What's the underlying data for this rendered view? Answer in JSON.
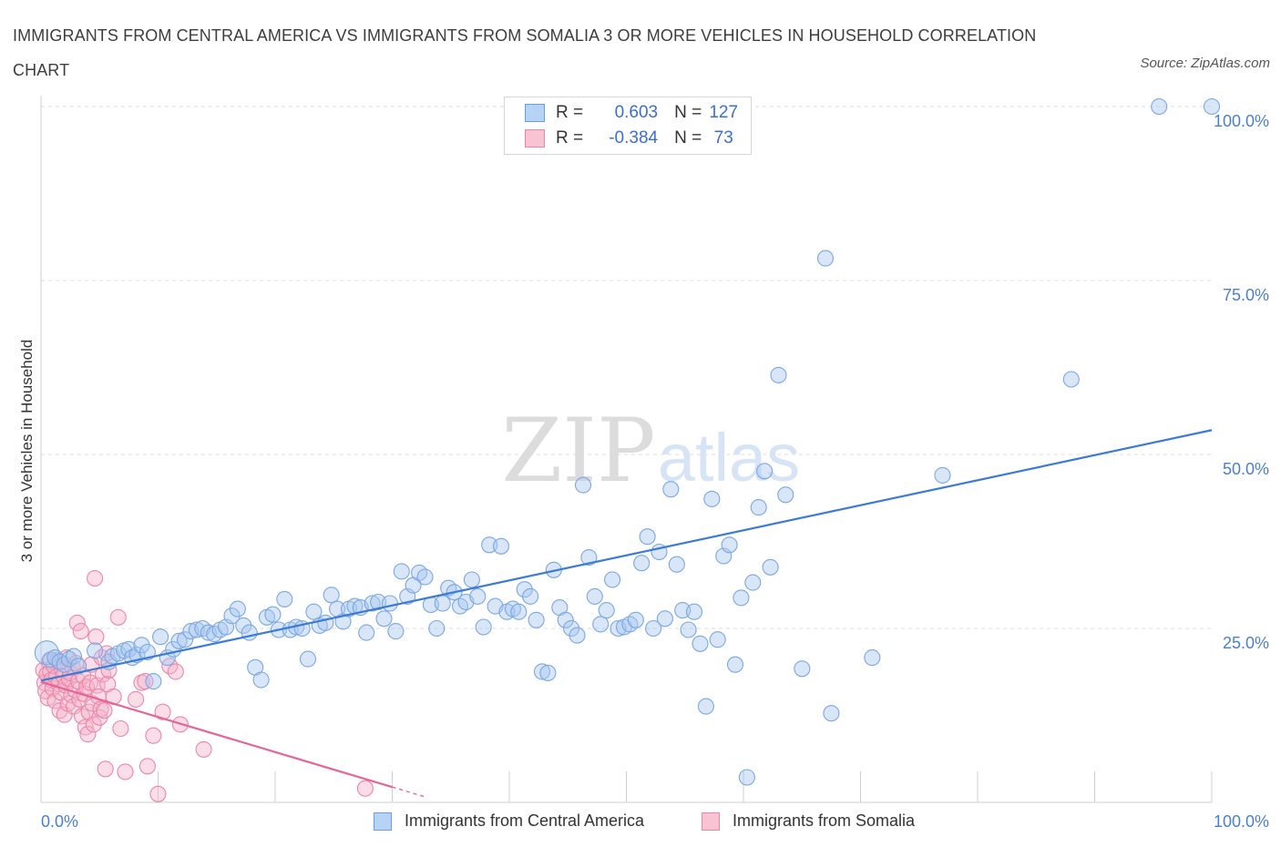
{
  "title": "IMMIGRANTS FROM CENTRAL AMERICA VS IMMIGRANTS FROM SOMALIA 3 OR MORE VEHICLES IN HOUSEHOLD CORRELATION CHART",
  "source": "Source: ZipAtlas.com",
  "watermark": {
    "zip": "ZIP",
    "atlas": "atlas"
  },
  "legend": {
    "r_label": "R =",
    "n_label": "N =",
    "rows": [
      {
        "r": "0.603",
        "n": "127"
      },
      {
        "r": "-0.384",
        "n": "73"
      }
    ]
  },
  "colors": {
    "blue_fill": "#a9c8f0",
    "blue_stroke": "#7aa7e3",
    "blue_line": "#3b7bd4",
    "pink_fill": "#f5b4c9",
    "pink_stroke": "#ec86a7",
    "pink_line": "#e4659a"
  },
  "chart_data": {
    "type": "scatter",
    "title": "IMMIGRANTS FROM CENTRAL AMERICA VS IMMIGRANTS FROM SOMALIA 3 OR MORE VEHICLES IN HOUSEHOLD CORRELATION CHART",
    "xlabel": "",
    "ylabel": "3 or more Vehicles in Household",
    "xlim": [
      0,
      100
    ],
    "ylim": [
      0,
      100
    ],
    "x_tick_labels": [
      "0.0%",
      "100.0%"
    ],
    "y_tick_labels": [
      "25.0%",
      "50.0%",
      "75.0%",
      "100.0%"
    ],
    "y_ticks": [
      25,
      50,
      75,
      100
    ],
    "grid": true,
    "legend_position": "top-center",
    "series": [
      {
        "name": "Immigrants from Central America",
        "R": 0.603,
        "N": 127,
        "trend": {
          "x": [
            0,
            100
          ],
          "y": [
            17.5,
            53.5
          ]
        },
        "points": [
          [
            0.5,
            21.5
          ],
          [
            0.8,
            20.5
          ],
          [
            1.2,
            20.8
          ],
          [
            1.6,
            20.2
          ],
          [
            2.0,
            19.8
          ],
          [
            2.4,
            20.6
          ],
          [
            2.8,
            21.0
          ],
          [
            3.2,
            19.6
          ],
          [
            4.6,
            21.8
          ],
          [
            5.8,
            20.2
          ],
          [
            6.1,
            21.0
          ],
          [
            6.6,
            21.4
          ],
          [
            7.1,
            21.8
          ],
          [
            7.5,
            22.0
          ],
          [
            7.8,
            20.8
          ],
          [
            8.2,
            21.2
          ],
          [
            8.6,
            22.6
          ],
          [
            9.1,
            21.6
          ],
          [
            9.6,
            17.4
          ],
          [
            10.2,
            23.8
          ],
          [
            10.8,
            20.8
          ],
          [
            11.3,
            22.0
          ],
          [
            11.8,
            23.2
          ],
          [
            12.3,
            23.4
          ],
          [
            12.8,
            24.6
          ],
          [
            13.3,
            24.8
          ],
          [
            13.8,
            25.0
          ],
          [
            14.3,
            24.4
          ],
          [
            14.8,
            24.2
          ],
          [
            15.3,
            24.8
          ],
          [
            15.8,
            25.2
          ],
          [
            16.3,
            26.8
          ],
          [
            16.8,
            27.8
          ],
          [
            17.3,
            25.4
          ],
          [
            17.8,
            24.4
          ],
          [
            18.3,
            19.4
          ],
          [
            18.8,
            17.6
          ],
          [
            19.3,
            26.6
          ],
          [
            19.8,
            27.0
          ],
          [
            20.3,
            24.8
          ],
          [
            20.8,
            29.2
          ],
          [
            21.3,
            24.8
          ],
          [
            21.8,
            25.2
          ],
          [
            22.3,
            25.0
          ],
          [
            22.8,
            20.6
          ],
          [
            23.3,
            27.4
          ],
          [
            23.8,
            25.4
          ],
          [
            24.3,
            25.8
          ],
          [
            24.8,
            29.8
          ],
          [
            25.3,
            27.8
          ],
          [
            25.8,
            26.0
          ],
          [
            26.3,
            27.8
          ],
          [
            26.8,
            28.2
          ],
          [
            27.3,
            28.0
          ],
          [
            27.8,
            24.4
          ],
          [
            28.3,
            28.6
          ],
          [
            28.8,
            28.8
          ],
          [
            29.3,
            26.4
          ],
          [
            29.8,
            28.6
          ],
          [
            30.3,
            24.6
          ],
          [
            30.8,
            33.2
          ],
          [
            31.3,
            29.6
          ],
          [
            31.8,
            31.2
          ],
          [
            32.3,
            33.0
          ],
          [
            32.8,
            32.4
          ],
          [
            33.3,
            28.4
          ],
          [
            33.8,
            25.0
          ],
          [
            34.3,
            28.6
          ],
          [
            34.8,
            30.8
          ],
          [
            35.3,
            30.2
          ],
          [
            35.8,
            28.2
          ],
          [
            36.3,
            28.8
          ],
          [
            36.8,
            32.0
          ],
          [
            37.3,
            29.6
          ],
          [
            37.8,
            25.2
          ],
          [
            38.3,
            37.0
          ],
          [
            38.8,
            28.2
          ],
          [
            39.3,
            36.8
          ],
          [
            39.8,
            27.4
          ],
          [
            40.3,
            27.8
          ],
          [
            40.8,
            27.4
          ],
          [
            41.3,
            30.6
          ],
          [
            41.8,
            29.6
          ],
          [
            42.3,
            26.2
          ],
          [
            42.8,
            18.8
          ],
          [
            43.3,
            18.6
          ],
          [
            43.8,
            33.4
          ],
          [
            44.3,
            28.0
          ],
          [
            44.8,
            26.2
          ],
          [
            45.3,
            25.0
          ],
          [
            45.8,
            24.0
          ],
          [
            46.3,
            45.6
          ],
          [
            46.8,
            35.2
          ],
          [
            47.3,
            29.6
          ],
          [
            47.8,
            25.6
          ],
          [
            48.3,
            27.6
          ],
          [
            48.8,
            32.0
          ],
          [
            49.3,
            25.0
          ],
          [
            49.8,
            25.2
          ],
          [
            50.3,
            25.6
          ],
          [
            50.8,
            26.2
          ],
          [
            51.3,
            34.4
          ],
          [
            51.8,
            38.2
          ],
          [
            52.3,
            25.0
          ],
          [
            52.8,
            36.0
          ],
          [
            53.3,
            26.4
          ],
          [
            53.8,
            45.0
          ],
          [
            54.3,
            34.2
          ],
          [
            54.8,
            27.6
          ],
          [
            55.3,
            24.8
          ],
          [
            55.8,
            27.4
          ],
          [
            56.3,
            22.8
          ],
          [
            56.8,
            13.8
          ],
          [
            57.3,
            43.6
          ],
          [
            57.8,
            23.4
          ],
          [
            58.3,
            35.4
          ],
          [
            58.8,
            37.0
          ],
          [
            59.3,
            19.8
          ],
          [
            59.8,
            29.4
          ],
          [
            60.3,
            3.6
          ],
          [
            60.8,
            31.6
          ],
          [
            61.3,
            42.4
          ],
          [
            61.8,
            47.6
          ],
          [
            62.3,
            33.8
          ],
          [
            63.0,
            61.4
          ],
          [
            63.6,
            44.2
          ],
          [
            65.0,
            19.2
          ],
          [
            67.0,
            78.2
          ],
          [
            67.5,
            12.8
          ],
          [
            71.0,
            20.8
          ],
          [
            77.0,
            47.0
          ],
          [
            88.0,
            60.8
          ],
          [
            95.5,
            100.0
          ],
          [
            100.0,
            100.0
          ]
        ]
      },
      {
        "name": "Immigrants from Somalia",
        "R": -0.384,
        "N": 73,
        "trend": {
          "x": [
            0,
            30
          ],
          "y": [
            17.3,
            2.2
          ]
        },
        "trend_dashed": {
          "x": [
            30,
            33
          ],
          "y": [
            2.2,
            0.7
          ]
        },
        "points": [
          [
            0.2,
            19.0
          ],
          [
            0.3,
            17.2
          ],
          [
            0.4,
            16.0
          ],
          [
            0.5,
            18.4
          ],
          [
            0.6,
            15.0
          ],
          [
            0.7,
            20.2
          ],
          [
            0.8,
            18.8
          ],
          [
            0.9,
            17.6
          ],
          [
            1.0,
            16.4
          ],
          [
            1.1,
            19.6
          ],
          [
            1.2,
            14.6
          ],
          [
            1.3,
            18.0
          ],
          [
            1.4,
            20.4
          ],
          [
            1.5,
            17.0
          ],
          [
            1.6,
            13.2
          ],
          [
            1.7,
            15.8
          ],
          [
            1.8,
            19.2
          ],
          [
            1.9,
            18.2
          ],
          [
            2.0,
            12.6
          ],
          [
            2.1,
            16.8
          ],
          [
            2.2,
            20.8
          ],
          [
            2.3,
            14.2
          ],
          [
            2.4,
            17.8
          ],
          [
            2.5,
            18.6
          ],
          [
            2.6,
            15.4
          ],
          [
            2.7,
            19.4
          ],
          [
            2.8,
            13.8
          ],
          [
            2.9,
            16.2
          ],
          [
            3.0,
            20.0
          ],
          [
            3.1,
            25.8
          ],
          [
            3.2,
            17.4
          ],
          [
            3.3,
            14.8
          ],
          [
            3.4,
            24.6
          ],
          [
            3.5,
            12.4
          ],
          [
            3.6,
            18.2
          ],
          [
            3.7,
            15.6
          ],
          [
            3.8,
            10.8
          ],
          [
            3.9,
            16.6
          ],
          [
            4.0,
            9.8
          ],
          [
            4.1,
            13.0
          ],
          [
            4.2,
            17.2
          ],
          [
            4.3,
            19.8
          ],
          [
            4.4,
            14.2
          ],
          [
            4.5,
            11.2
          ],
          [
            4.6,
            32.2
          ],
          [
            4.7,
            23.8
          ],
          [
            4.8,
            16.8
          ],
          [
            4.9,
            15.2
          ],
          [
            5.0,
            12.2
          ],
          [
            5.1,
            13.4
          ],
          [
            5.2,
            20.8
          ],
          [
            5.3,
            18.4
          ],
          [
            5.4,
            13.2
          ],
          [
            5.5,
            4.8
          ],
          [
            5.6,
            21.4
          ],
          [
            5.7,
            17.0
          ],
          [
            5.8,
            19.0
          ],
          [
            6.2,
            15.2
          ],
          [
            6.6,
            26.6
          ],
          [
            6.8,
            10.6
          ],
          [
            7.2,
            4.4
          ],
          [
            8.1,
            14.8
          ],
          [
            8.6,
            17.2
          ],
          [
            8.9,
            17.4
          ],
          [
            9.1,
            5.2
          ],
          [
            9.6,
            9.6
          ],
          [
            10.0,
            1.2
          ],
          [
            10.4,
            13.0
          ],
          [
            11.0,
            19.6
          ],
          [
            11.5,
            18.8
          ],
          [
            11.9,
            11.2
          ],
          [
            13.9,
            7.6
          ],
          [
            27.7,
            2.0
          ]
        ]
      }
    ]
  },
  "bottom_legend": [
    "Immigrants from Central America",
    "Immigrants from Somalia"
  ]
}
